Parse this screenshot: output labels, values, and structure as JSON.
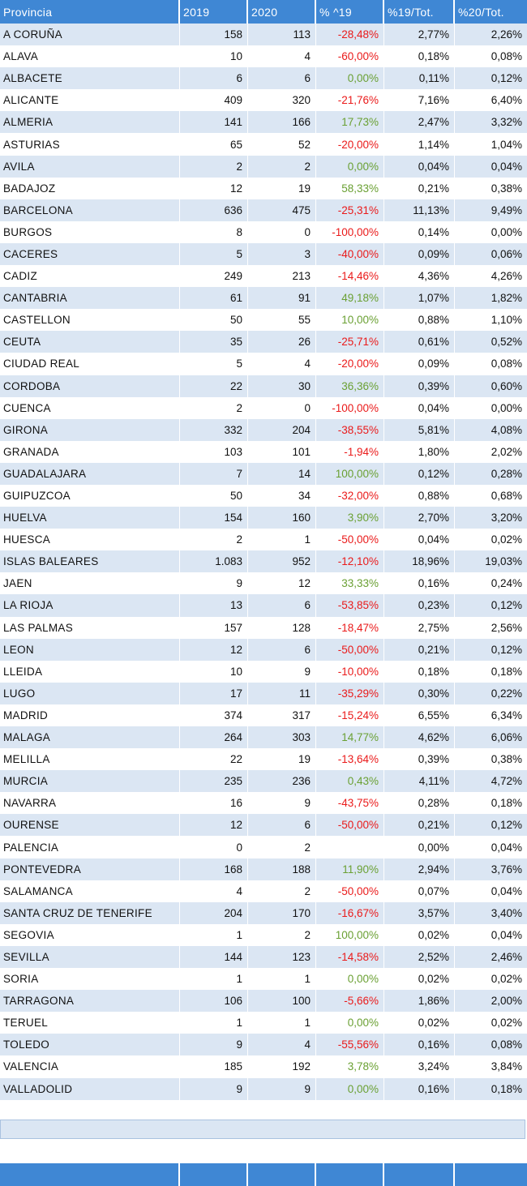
{
  "columns": [
    "Provincia",
    "2019",
    "2020",
    "% ^19",
    "%19/Tot.",
    "%20/Tot."
  ],
  "rows": [
    [
      "A CORUÑA",
      "158",
      "113",
      "-28,48%",
      "2,77%",
      "2,26%"
    ],
    [
      "ALAVA",
      "10",
      "4",
      "-60,00%",
      "0,18%",
      "0,08%"
    ],
    [
      "ALBACETE",
      "6",
      "6",
      "0,00%",
      "0,11%",
      "0,12%"
    ],
    [
      "ALICANTE",
      "409",
      "320",
      "-21,76%",
      "7,16%",
      "6,40%"
    ],
    [
      "ALMERIA",
      "141",
      "166",
      "17,73%",
      "2,47%",
      "3,32%"
    ],
    [
      "ASTURIAS",
      "65",
      "52",
      "-20,00%",
      "1,14%",
      "1,04%"
    ],
    [
      "AVILA",
      "2",
      "2",
      "0,00%",
      "0,04%",
      "0,04%"
    ],
    [
      "BADAJOZ",
      "12",
      "19",
      "58,33%",
      "0,21%",
      "0,38%"
    ],
    [
      "BARCELONA",
      "636",
      "475",
      "-25,31%",
      "11,13%",
      "9,49%"
    ],
    [
      "BURGOS",
      "8",
      "0",
      "-100,00%",
      "0,14%",
      "0,00%"
    ],
    [
      "CACERES",
      "5",
      "3",
      "-40,00%",
      "0,09%",
      "0,06%"
    ],
    [
      "CADIZ",
      "249",
      "213",
      "-14,46%",
      "4,36%",
      "4,26%"
    ],
    [
      "CANTABRIA",
      "61",
      "91",
      "49,18%",
      "1,07%",
      "1,82%"
    ],
    [
      "CASTELLON",
      "50",
      "55",
      "10,00%",
      "0,88%",
      "1,10%"
    ],
    [
      "CEUTA",
      "35",
      "26",
      "-25,71%",
      "0,61%",
      "0,52%"
    ],
    [
      "CIUDAD REAL",
      "5",
      "4",
      "-20,00%",
      "0,09%",
      "0,08%"
    ],
    [
      "CORDOBA",
      "22",
      "30",
      "36,36%",
      "0,39%",
      "0,60%"
    ],
    [
      "CUENCA",
      "2",
      "0",
      "-100,00%",
      "0,04%",
      "0,00%"
    ],
    [
      "GIRONA",
      "332",
      "204",
      "-38,55%",
      "5,81%",
      "4,08%"
    ],
    [
      "GRANADA",
      "103",
      "101",
      "-1,94%",
      "1,80%",
      "2,02%"
    ],
    [
      "GUADALAJARA",
      "7",
      "14",
      "100,00%",
      "0,12%",
      "0,28%"
    ],
    [
      "GUIPUZCOA",
      "50",
      "34",
      "-32,00%",
      "0,88%",
      "0,68%"
    ],
    [
      "HUELVA",
      "154",
      "160",
      "3,90%",
      "2,70%",
      "3,20%"
    ],
    [
      "HUESCA",
      "2",
      "1",
      "-50,00%",
      "0,04%",
      "0,02%"
    ],
    [
      "ISLAS BALEARES",
      "1.083",
      "952",
      "-12,10%",
      "18,96%",
      "19,03%"
    ],
    [
      "JAEN",
      "9",
      "12",
      "33,33%",
      "0,16%",
      "0,24%"
    ],
    [
      "LA RIOJA",
      "13",
      "6",
      "-53,85%",
      "0,23%",
      "0,12%"
    ],
    [
      "LAS PALMAS",
      "157",
      "128",
      "-18,47%",
      "2,75%",
      "2,56%"
    ],
    [
      "LEON",
      "12",
      "6",
      "-50,00%",
      "0,21%",
      "0,12%"
    ],
    [
      "LLEIDA",
      "10",
      "9",
      "-10,00%",
      "0,18%",
      "0,18%"
    ],
    [
      "LUGO",
      "17",
      "11",
      "-35,29%",
      "0,30%",
      "0,22%"
    ],
    [
      "MADRID",
      "374",
      "317",
      "-15,24%",
      "6,55%",
      "6,34%"
    ],
    [
      "MALAGA",
      "264",
      "303",
      "14,77%",
      "4,62%",
      "6,06%"
    ],
    [
      "MELILLA",
      "22",
      "19",
      "-13,64%",
      "0,39%",
      "0,38%"
    ],
    [
      "MURCIA",
      "235",
      "236",
      "0,43%",
      "4,11%",
      "4,72%"
    ],
    [
      "NAVARRA",
      "16",
      "9",
      "-43,75%",
      "0,28%",
      "0,18%"
    ],
    [
      "OURENSE",
      "12",
      "6",
      "-50,00%",
      "0,21%",
      "0,12%"
    ],
    [
      "PALENCIA",
      "0",
      "2",
      "",
      "0,00%",
      "0,04%"
    ],
    [
      "PONTEVEDRA",
      "168",
      "188",
      "11,90%",
      "2,94%",
      "3,76%"
    ],
    [
      "SALAMANCA",
      "4",
      "2",
      "-50,00%",
      "0,07%",
      "0,04%"
    ],
    [
      "SANTA CRUZ DE TENERIFE",
      "204",
      "170",
      "-16,67%",
      "3,57%",
      "3,40%"
    ],
    [
      "SEGOVIA",
      "1",
      "2",
      "100,00%",
      "0,02%",
      "0,04%"
    ],
    [
      "SEVILLA",
      "144",
      "123",
      "-14,58%",
      "2,52%",
      "2,46%"
    ],
    [
      "SORIA",
      "1",
      "1",
      "0,00%",
      "0,02%",
      "0,02%"
    ],
    [
      "TARRAGONA",
      "106",
      "100",
      "-5,66%",
      "1,86%",
      "2,00%"
    ],
    [
      "TERUEL",
      "1",
      "1",
      "0,00%",
      "0,02%",
      "0,02%"
    ],
    [
      "TOLEDO",
      "9",
      "4",
      "-55,56%",
      "0,16%",
      "0,08%"
    ],
    [
      "VALENCIA",
      "185",
      "192",
      "3,78%",
      "3,24%",
      "3,84%"
    ],
    [
      "VALLADOLID",
      "9",
      "9",
      "0,00%",
      "0,16%",
      "0,18%"
    ]
  ],
  "colors": {
    "header_bg": "#3f87d4",
    "stripe": "#dbe6f3",
    "negative": "#ea1a1a",
    "positive": "#6aa033"
  }
}
